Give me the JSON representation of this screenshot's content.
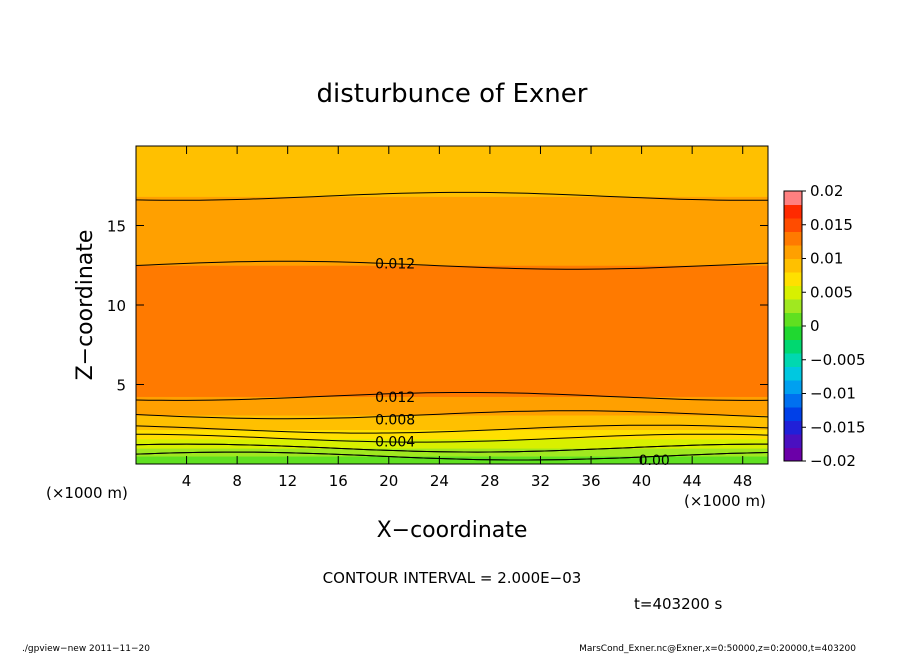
{
  "chart_data": {
    "type": "heatmap",
    "title": "disturbunce of Exner",
    "xlabel": "X−coordinate",
    "ylabel": "Z−coordinate",
    "x_unit": "(×1000 m)",
    "y_unit": "(×1000 m)",
    "xlim": [
      0,
      50
    ],
    "ylim": [
      0,
      20
    ],
    "x_ticks": [
      4,
      8,
      12,
      16,
      20,
      24,
      28,
      32,
      36,
      40,
      44,
      48
    ],
    "y_ticks": [
      5,
      10,
      15
    ],
    "colorbar_ticks": [
      "0.02",
      "0.015",
      "0.01",
      "0.005",
      "0",
      "−0.005",
      "−0.01",
      "−0.015",
      "−0.02"
    ],
    "colorbar_range": [
      -0.02,
      0.02
    ],
    "colorbar_levels": 20,
    "contour_labels": [
      "0.012",
      "0.012",
      "0.008",
      "0.004",
      "0.00"
    ],
    "contour_interval": 0.002,
    "value_profile_vs_z": {
      "z": [
        0,
        0.2,
        0.5,
        1.0,
        1.5,
        2.0,
        2.5,
        3.0,
        3.5,
        4.0,
        4.5,
        5.0,
        6.0,
        7.0,
        8.0,
        9.0,
        10.0,
        11.0,
        12.0,
        13.0,
        14.0,
        15.0,
        16.0,
        17.0,
        18.0,
        19.0,
        20.0
      ],
      "value": [
        0.0002,
        0.001,
        0.002,
        0.004,
        0.0055,
        0.0075,
        0.0088,
        0.0098,
        0.0108,
        0.0116,
        0.0124,
        0.0129,
        0.0135,
        0.0137,
        0.0135,
        0.0133,
        0.013,
        0.0127,
        0.0122,
        0.0118,
        0.0114,
        0.011,
        0.0105,
        0.0099,
        0.0095,
        0.009,
        0.0087
      ]
    },
    "grid": false,
    "colorbar_position": "right"
  },
  "footer": {
    "contour_interval_text": "CONTOUR INTERVAL = 2.000E−03",
    "time_text": "t=403200 s",
    "left_note": "./gpview−new   2011−11−20",
    "right_note": "MarsCond_Exner.nc@Exner,x=0:50000,z=0:20000,t=403200"
  },
  "colors": {
    "levels": [
      "#6b00a8",
      "#4a10c0",
      "#2020d8",
      "#0040e8",
      "#0070f0",
      "#00a0f0",
      "#00c8e0",
      "#00d8b0",
      "#00d870",
      "#20d830",
      "#60e020",
      "#a0e820",
      "#d8f000",
      "#ffe000",
      "#ffc000",
      "#ffa000",
      "#ff7a00",
      "#ff4c00",
      "#ff2a00",
      "#ff8080"
    ]
  }
}
